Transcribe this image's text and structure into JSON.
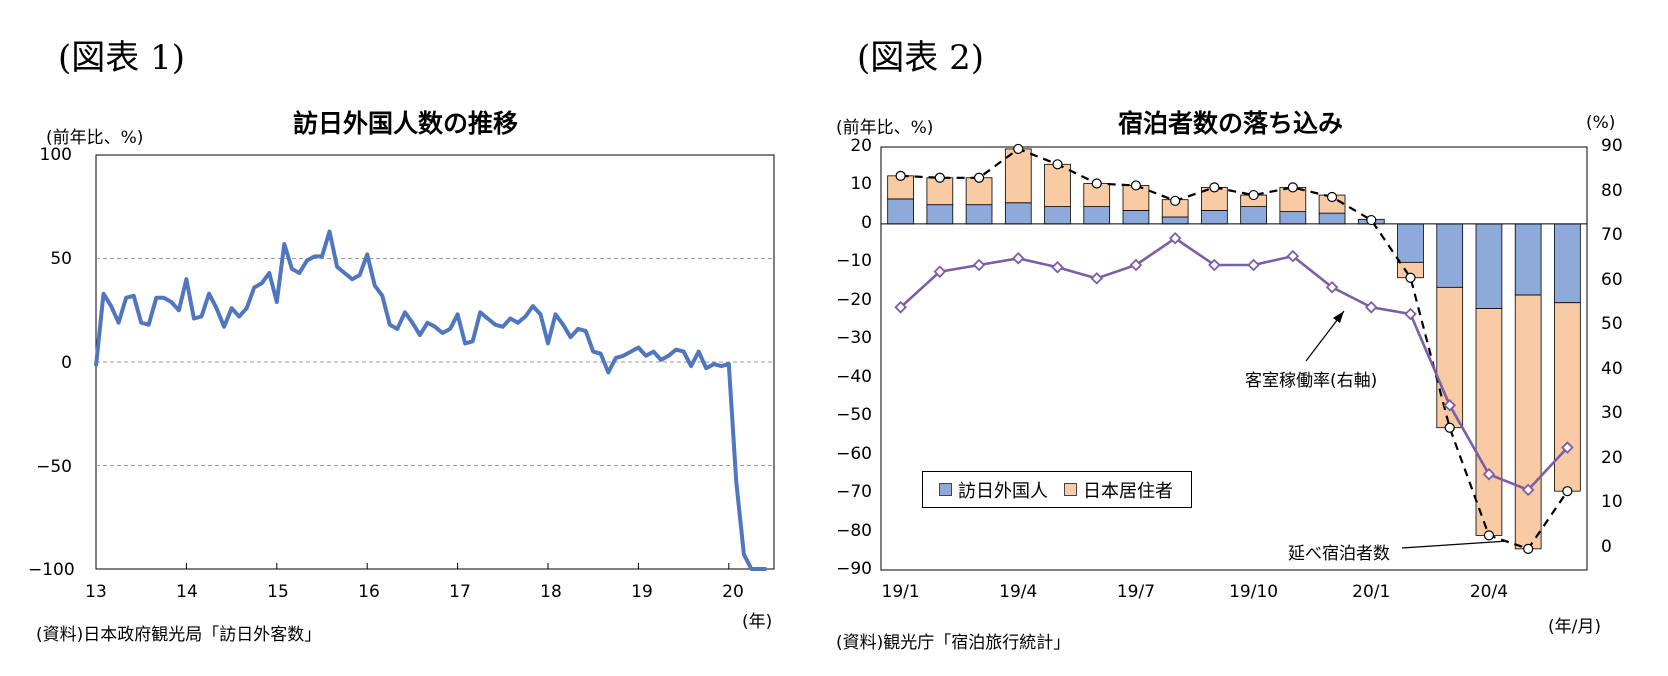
{
  "left": {
    "fig_label": "(図表 1)",
    "title": "訪日外国人数の推移",
    "unit": "(前年比、%)",
    "x_unit": "(年)",
    "source": "(資料)日本政府観光局「訪日外客数」",
    "y_ticks": [
      "100",
      "50",
      "0",
      "−50",
      "−100"
    ],
    "x_ticks": [
      "13",
      "14",
      "15",
      "16",
      "17",
      "18",
      "19",
      "20"
    ]
  },
  "right": {
    "fig_label": "(図表 2)",
    "title": "宿泊者数の落ち込み",
    "unit_left": "(前年比、%)",
    "unit_right": "(%)",
    "x_unit": "(年/月)",
    "source": "(資料)観光庁「宿泊旅行統計」",
    "y_ticks_left": [
      "20",
      "10",
      "0",
      "−10",
      "−20",
      "−30",
      "−40",
      "−50",
      "−60",
      "−70",
      "−80",
      "−90"
    ],
    "y_ticks_right": [
      "90",
      "80",
      "70",
      "60",
      "50",
      "40",
      "30",
      "20",
      "10",
      "0"
    ],
    "x_ticks": [
      "19/1",
      "19/4",
      "19/7",
      "19/10",
      "20/1",
      "20/4"
    ],
    "annotation_occupancy": "客室稼働率(右軸)",
    "annotation_total": "延べ宿泊者数",
    "legend": [
      {
        "label": "訪日外国人",
        "color": "#8eaadb"
      },
      {
        "label": "日本居住者",
        "color": "#f8cba4"
      }
    ]
  },
  "chart_data": [
    {
      "type": "line",
      "title": "訪日外国人数の推移",
      "ylabel": "前年比、%",
      "xlabel": "年",
      "ylim": [
        -100,
        100
      ],
      "xlim": [
        "2013-01",
        "2020-06"
      ],
      "grid": "horizontal dashed",
      "color": "#4f76bf",
      "x_start": "2013-01",
      "x_step": "month",
      "series": [
        {
          "values": [
            -2,
            33,
            27,
            19,
            31,
            32,
            19,
            18,
            31,
            31,
            29,
            25,
            40,
            21,
            22,
            33,
            26,
            17,
            26,
            22,
            26,
            36,
            38,
            43,
            29,
            57,
            45,
            43,
            49,
            51,
            51,
            63,
            46,
            43,
            40,
            42,
            52,
            37,
            32,
            18,
            16,
            24,
            19,
            13,
            19,
            17,
            14,
            16,
            23,
            9,
            10,
            24,
            21,
            18,
            17,
            21,
            19,
            22,
            27,
            23,
            9,
            23,
            18,
            12,
            16,
            15,
            5,
            4,
            -5,
            2,
            3,
            5,
            7,
            3,
            5,
            1,
            3,
            6,
            5,
            -2,
            5,
            -3,
            -1,
            -2,
            -1,
            -58,
            -93,
            -100,
            -100,
            -100
          ]
        }
      ]
    },
    {
      "type": "bar",
      "stacked": true,
      "title": "宿泊者数の落ち込み",
      "categories": [
        "19/1",
        "19/2",
        "19/3",
        "19/4",
        "19/5",
        "19/6",
        "19/7",
        "19/8",
        "19/9",
        "19/10",
        "19/11",
        "19/12",
        "20/1",
        "20/2",
        "20/3",
        "20/4",
        "20/5",
        "20/6"
      ],
      "ylim_left": [
        -90,
        20
      ],
      "ylim_right": [
        -5,
        90
      ],
      "series": [
        {
          "name": "訪日外国人",
          "axis": "left",
          "type": "bar",
          "color": "#8eaadb",
          "values": [
            6.5,
            5,
            5,
            5.5,
            4.5,
            4.5,
            3.5,
            1.8,
            3.5,
            4.5,
            3.2,
            2.8,
            1.2,
            -10,
            -16.5,
            -22,
            -18.5,
            -20.5
          ]
        },
        {
          "name": "日本居住者",
          "axis": "left",
          "type": "bar",
          "color": "#f8cba4",
          "values": [
            6,
            7,
            7,
            14,
            11,
            6,
            6.5,
            4.5,
            6,
            3,
            6.3,
            4.7,
            0,
            -4,
            -36.5,
            -59,
            -66,
            -49
          ]
        },
        {
          "name": "延べ宿泊者数",
          "axis": "left",
          "type": "line",
          "style": "dashed",
          "marker": "circle",
          "values": [
            12.5,
            12,
            12,
            19.5,
            15.5,
            10.5,
            10,
            6,
            9.5,
            7.5,
            9.5,
            7,
            1,
            -14,
            -53,
            -81,
            -84.5,
            -69.5
          ]
        },
        {
          "name": "客室稼働率(右軸)",
          "axis": "right",
          "type": "line",
          "color": "#7b5ea7",
          "marker": "diamond",
          "values": [
            54,
            62,
            63.5,
            65,
            63,
            60.5,
            63.5,
            69.5,
            63.5,
            63.5,
            65.5,
            58.5,
            54,
            52.5,
            32,
            16.5,
            13,
            22.5
          ]
        }
      ]
    }
  ]
}
